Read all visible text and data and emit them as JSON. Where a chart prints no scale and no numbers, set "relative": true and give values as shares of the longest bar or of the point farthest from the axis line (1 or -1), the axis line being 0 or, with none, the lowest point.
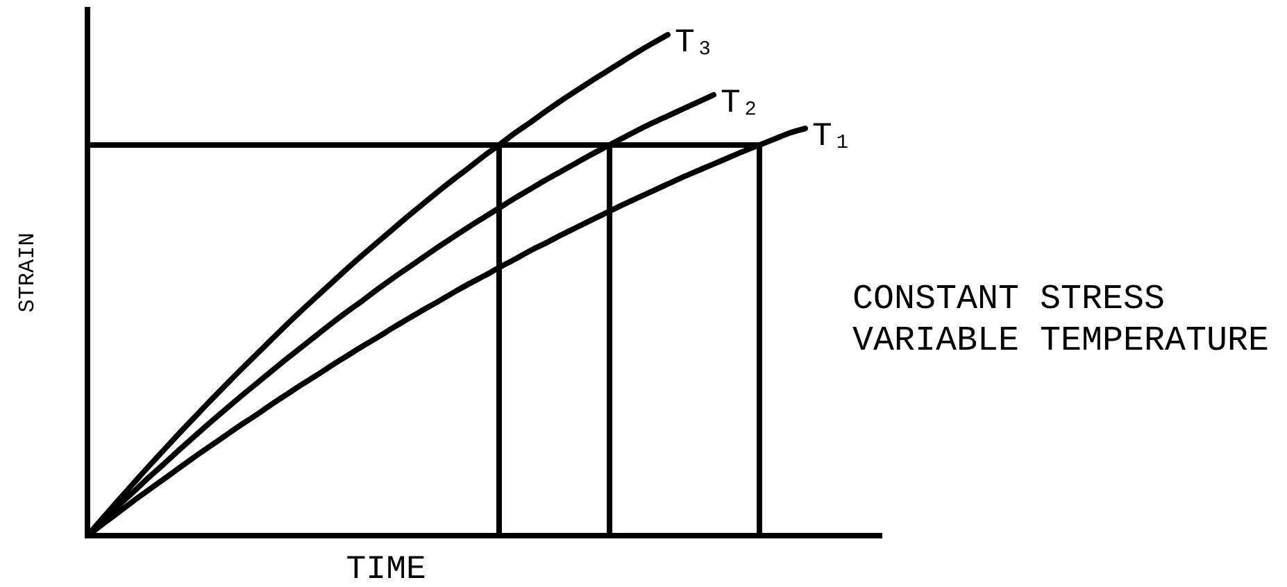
{
  "chart_data": {
    "type": "line",
    "relative": true,
    "grid": "x",
    "xlabel": "TIME",
    "ylabel": "STRAIN",
    "annotations": [
      "CONSTANT STRESS",
      "VARIABLE TEMPERATURE"
    ],
    "categories": [
      null,
      null,
      null,
      null,
      null,
      null,
      null,
      null,
      null,
      null,
      null,
      null,
      null,
      null,
      null,
      null,
      null,
      null,
      null,
      null,
      null,
      null,
      null,
      null,
      null,
      null,
      null,
      null,
      null,
      null,
      null,
      null,
      null,
      null,
      null,
      null,
      null,
      null,
      null,
      null,
      null,
      null,
      null,
      null,
      null,
      null,
      null,
      null,
      null,
      null,
      null,
      null,
      null
    ],
    "series": [
      {
        "name": "T₁",
        "color": "#000000",
        "values": [
          0,
          0.023,
          0.046,
          0.069,
          0.091,
          0.113,
          0.135,
          0.157,
          0.178,
          0.199,
          0.22,
          0.24,
          0.261,
          0.281,
          0.301,
          0.32,
          0.34,
          0.359,
          0.378,
          0.396,
          0.415,
          0.433,
          0.451,
          0.468,
          0.486,
          0.503,
          0.519,
          0.536,
          0.552,
          0.569,
          0.584,
          0.6,
          0.615,
          0.63,
          0.645,
          0.66,
          0.674,
          0.688,
          0.702,
          0.716,
          0.729,
          0.742,
          0.755,
          0.768,
          0.78,
          0.792,
          0.804,
          0.813,
          null,
          null,
          null,
          null,
          null
        ]
      },
      {
        "name": "T₂",
        "color": "#000000",
        "values": [
          0,
          0.029,
          0.059,
          0.087,
          0.116,
          0.143,
          0.171,
          0.198,
          0.225,
          0.251,
          0.277,
          0.302,
          0.327,
          0.352,
          0.376,
          0.4,
          0.424,
          0.447,
          0.469,
          0.492,
          0.514,
          0.535,
          0.556,
          0.577,
          0.597,
          0.617,
          0.636,
          0.655,
          0.674,
          0.692,
          0.71,
          0.727,
          0.744,
          0.761,
          0.777,
          0.793,
          0.809,
          0.824,
          0.838,
          0.852,
          0.866,
          0.88,
          null,
          null,
          null,
          null,
          null,
          null,
          null,
          null,
          null,
          null,
          null
        ]
      },
      {
        "name": "T₃",
        "color": "#000000",
        "values": [
          0,
          0.035,
          0.07,
          0.104,
          0.138,
          0.171,
          0.204,
          0.236,
          0.268,
          0.299,
          0.33,
          0.36,
          0.39,
          0.42,
          0.449,
          0.477,
          0.505,
          0.533,
          0.56,
          0.586,
          0.612,
          0.638,
          0.663,
          0.688,
          0.712,
          0.735,
          0.759,
          0.781,
          0.804,
          0.825,
          0.847,
          0.868,
          0.888,
          0.908,
          0.927,
          0.946,
          0.965,
          0.983,
          1,
          null,
          null,
          null,
          null,
          null,
          null,
          null,
          null,
          null,
          null,
          null,
          null,
          null,
          null
        ]
      }
    ],
    "ref_lines": [
      {
        "axis": "y",
        "value": 0.78
      }
    ]
  }
}
